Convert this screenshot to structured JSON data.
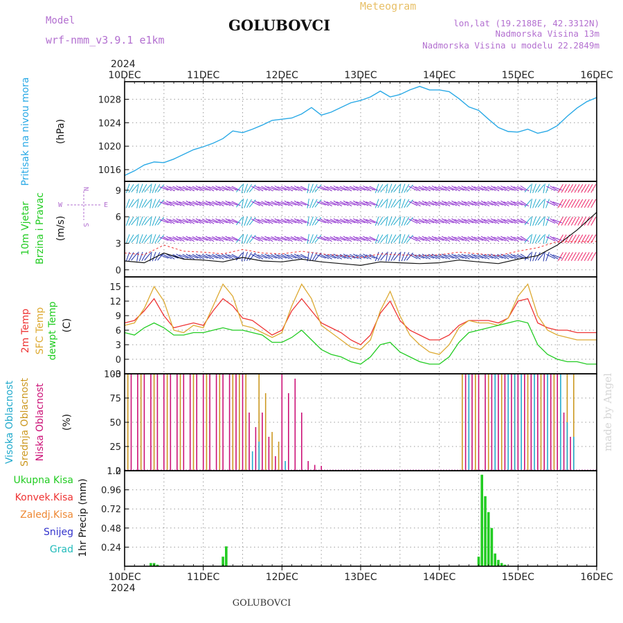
{
  "header": {
    "model_label": "Model",
    "model_name": "wrf-nmm_v3.9.1 e1km",
    "station": "GOLUBOVCI",
    "chart_title": "Meteogram",
    "lonlat": "lon,lat (19.2188E, 42.3312N)",
    "elevation": "Nadmorska Visina 13m",
    "model_elevation": "Nadmorska Visina u modelu 22.2849m",
    "credit": "made by Angel",
    "footer_station": "GOLUBOVCI"
  },
  "time_axis": {
    "year": "2024",
    "ticks": [
      "10DEC",
      "11DEC",
      "12DEC",
      "13DEC",
      "14DEC",
      "15DEC",
      "16DEC"
    ]
  },
  "colors": {
    "pressure": "#29a9e6",
    "temp2m": "#ee3333",
    "sfc_temp": "#ddaa33",
    "dewpoint": "#22cc22",
    "cloud_high": "#22aacc",
    "cloud_mid": "#cc9922",
    "cloud_low": "#cc1177",
    "precip_total": "#22cc22",
    "precip_conv": "#ee3333",
    "precip_frozen": "#ee8833",
    "snow": "#3333cc",
    "hail": "#22bbbb",
    "wind_light": "#8822cc",
    "wind_calm": "#22aacc",
    "wind_strong": "#ee2266"
  },
  "chart_data": [
    {
      "type": "line",
      "panel": "pressure",
      "ylabel_left": "Pritisak na nivou mora",
      "ylabel_unit": "(hPa)",
      "ylim": [
        1014,
        1031
      ],
      "yticks": [
        1016,
        1020,
        1024,
        1028
      ],
      "x_hours": [
        0,
        3,
        6,
        9,
        12,
        15,
        18,
        21,
        24,
        27,
        30,
        33,
        36,
        39,
        42,
        45,
        48,
        51,
        54,
        57,
        60,
        63,
        66,
        69,
        72,
        75,
        78,
        81,
        84,
        87,
        90,
        93,
        96,
        99,
        102,
        105,
        108,
        111,
        114,
        117,
        120,
        123,
        126,
        129,
        132,
        135,
        138,
        141,
        144
      ],
      "series": [
        {
          "values": [
            1015,
            1015.8,
            1016.8,
            1017.3,
            1017.2,
            1017.8,
            1018.6,
            1019.4,
            1019.9,
            1020.5,
            1021.3,
            1022.6,
            1022.3,
            1022.9,
            1023.6,
            1024.4,
            1024.6,
            1024.8,
            1025.5,
            1026.6,
            1025.3,
            1025.8,
            1026.6,
            1027.4,
            1027.8,
            1028.4,
            1029.4,
            1028.4,
            1028.8,
            1029.6,
            1030.2,
            1029.6,
            1029.6,
            1029.3,
            1028.1,
            1026.7,
            1026.1,
            1024.6,
            1023.2,
            1022.5,
            1022.4,
            1022.9,
            1022.2,
            1022.6,
            1023.5,
            1025.1,
            1026.5,
            1027.6,
            1028.3
          ]
        }
      ],
      "grid": true
    },
    {
      "type": "line",
      "panel": "wind",
      "ylabel_left": "10m Vjetar Brzina i Pravac",
      "ylabel_unit": "(m/s)",
      "compass": [
        "N",
        "W",
        "E",
        "S"
      ],
      "ylim": [
        -0.8,
        10
      ],
      "yticks": [
        0,
        3,
        6,
        9
      ],
      "x_hours": [
        0,
        6,
        12,
        18,
        24,
        30,
        36,
        42,
        48,
        54,
        60,
        66,
        72,
        78,
        84,
        90,
        96,
        102,
        108,
        114,
        120,
        126,
        132,
        138,
        144
      ],
      "series": [
        {
          "name": "speed",
          "values": [
            1.0,
            0.8,
            1.9,
            1.2,
            1.1,
            0.9,
            1.4,
            1.0,
            0.9,
            1.2,
            0.9,
            0.7,
            0.5,
            0.9,
            0.8,
            0.7,
            0.8,
            1.1,
            0.9,
            0.7,
            1.2,
            1.6,
            2.8,
            4.5,
            6.5
          ]
        }
      ],
      "grid": true
    },
    {
      "type": "line",
      "panel": "temperature",
      "ylabels_left": [
        "2m Temp",
        "SFC Temp",
        "dewpt Temp"
      ],
      "ylabel_unit": "(C)",
      "ylim": [
        -3,
        17
      ],
      "yticks": [
        -3,
        0,
        3,
        6,
        9,
        12,
        15
      ],
      "x_hours": [
        0,
        3,
        6,
        9,
        12,
        15,
        18,
        21,
        24,
        27,
        30,
        33,
        36,
        39,
        42,
        45,
        48,
        51,
        54,
        57,
        60,
        63,
        66,
        69,
        72,
        75,
        78,
        81,
        84,
        87,
        90,
        93,
        96,
        99,
        102,
        105,
        108,
        111,
        114,
        117,
        120,
        123,
        126,
        129,
        132,
        135,
        138,
        141,
        144
      ],
      "series": [
        {
          "name": "2m Temp",
          "values": [
            7.5,
            8.0,
            10.0,
            12.5,
            9.0,
            6.5,
            7.0,
            7.5,
            7.0,
            10.0,
            12.5,
            11.0,
            8.5,
            8.0,
            6.5,
            5.0,
            6.0,
            10.0,
            12.5,
            10.0,
            7.5,
            6.5,
            5.5,
            4.0,
            3.0,
            5.0,
            9.5,
            12.0,
            8.0,
            6.0,
            5.0,
            4.0,
            4.0,
            5.0,
            7.0,
            8.0,
            8.0,
            8.0,
            7.5,
            8.5,
            12.0,
            12.5,
            7.5,
            6.5,
            6.0,
            6.0,
            5.5,
            5.5,
            5.5
          ]
        },
        {
          "name": "SFC Temp",
          "values": [
            7.0,
            7.5,
            10.5,
            15.0,
            12.0,
            6.0,
            5.5,
            7.0,
            6.5,
            11.0,
            15.5,
            13.0,
            7.0,
            6.5,
            5.5,
            4.5,
            5.5,
            11.0,
            15.5,
            12.5,
            7.0,
            5.5,
            4.0,
            2.5,
            2.0,
            4.0,
            10.0,
            14.0,
            9.0,
            5.0,
            3.0,
            1.5,
            1.0,
            3.0,
            6.5,
            8.0,
            7.5,
            7.5,
            7.0,
            8.5,
            13.0,
            15.5,
            9.0,
            6.0,
            5.0,
            4.5,
            4.0,
            4.0,
            4.0
          ]
        },
        {
          "name": "dewpt Temp",
          "values": [
            5.5,
            5.0,
            6.5,
            7.5,
            6.5,
            5.0,
            5.0,
            5.5,
            5.5,
            6.0,
            6.5,
            6.0,
            6.0,
            5.5,
            5.0,
            3.5,
            3.5,
            4.5,
            6.0,
            4.0,
            2.0,
            1.0,
            0.5,
            -0.5,
            -1.0,
            0.5,
            3.0,
            3.5,
            1.5,
            0.5,
            -0.5,
            -1.0,
            -1.0,
            0.5,
            3.5,
            5.5,
            6.0,
            6.5,
            7.0,
            7.5,
            8.0,
            7.5,
            3.0,
            1.0,
            0.0,
            -0.5,
            -0.5,
            -1.0,
            -1.0
          ]
        }
      ],
      "grid": true
    },
    {
      "type": "bar",
      "panel": "cloud",
      "ylabels_left": [
        "Visoka Oblacnost",
        "Srednja Oblacnost",
        "Niska Oblacnost"
      ],
      "ylabel_unit": "(%)",
      "ylim": [
        0,
        100
      ],
      "yticks": [
        0,
        25,
        50,
        75,
        100
      ],
      "series": [
        {
          "name": "Niska Oblacnost",
          "x_hours": [
            2,
            4,
            6,
            8,
            10,
            12,
            14,
            16,
            18,
            20,
            22,
            24,
            26,
            28,
            30,
            32,
            34,
            36,
            38,
            40,
            42,
            44,
            46,
            48,
            50,
            52,
            54,
            56,
            58,
            60,
            104,
            106,
            108,
            110,
            112,
            114,
            116,
            118,
            120,
            122,
            124,
            126,
            128,
            130,
            132,
            134,
            136
          ],
          "values": [
            100,
            100,
            100,
            100,
            100,
            100,
            100,
            100,
            100,
            100,
            100,
            100,
            100,
            100,
            100,
            100,
            100,
            100,
            60,
            45,
            60,
            35,
            15,
            100,
            80,
            95,
            60,
            10,
            6,
            5,
            100,
            100,
            100,
            100,
            100,
            100,
            100,
            100,
            100,
            100,
            100,
            100,
            100,
            100,
            100,
            60,
            35
          ]
        },
        {
          "name": "Srednja Oblacnost",
          "x_hours": [
            1,
            5,
            9,
            13,
            17,
            21,
            25,
            29,
            33,
            35,
            37,
            41,
            43,
            45,
            47,
            103,
            107,
            111,
            115,
            119,
            123,
            127,
            131,
            135,
            137
          ],
          "values": [
            100,
            100,
            100,
            100,
            100,
            100,
            100,
            100,
            100,
            100,
            100,
            100,
            80,
            40,
            30,
            100,
            100,
            100,
            100,
            100,
            100,
            100,
            100,
            100,
            100
          ]
        },
        {
          "name": "Visoka Oblacnost",
          "x_hours": [
            39,
            41,
            49,
            105,
            113,
            117,
            119,
            121,
            125,
            129,
            133,
            135,
            137
          ],
          "values": [
            20,
            30,
            10,
            100,
            100,
            100,
            100,
            100,
            100,
            100,
            100,
            50,
            35
          ]
        }
      ],
      "grid": true
    },
    {
      "type": "bar",
      "panel": "precip",
      "ylabel_unit": "1hr Precip (mm)",
      "ylim": [
        0,
        1.2
      ],
      "yticks": [
        0.24,
        0.48,
        0.72,
        0.96,
        1.2
      ],
      "legend": [
        "Ukupna Kisa",
        "Konvek.Kisa",
        "Zaledj.Kisa",
        "Snijeg",
        "Grad"
      ],
      "series": [
        {
          "name": "Ukupna Kisa",
          "x_hours": [
            8,
            9,
            10,
            30,
            31,
            108,
            109,
            110,
            111,
            112,
            113,
            114,
            115,
            116
          ],
          "values": [
            0.04,
            0.04,
            0.02,
            0.12,
            0.25,
            0.12,
            1.15,
            0.88,
            0.68,
            0.48,
            0.16,
            0.08,
            0.04,
            0.02
          ]
        }
      ],
      "grid": true
    }
  ]
}
